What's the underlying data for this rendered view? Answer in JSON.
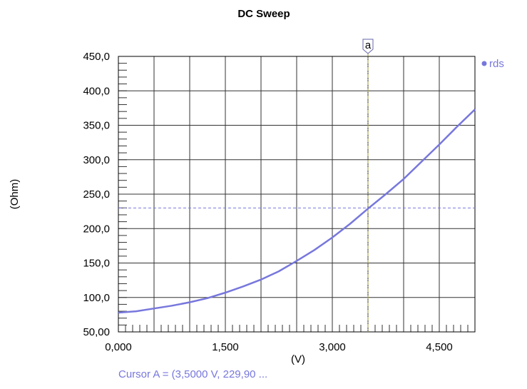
{
  "chart_data": {
    "type": "line",
    "title": "DC Sweep",
    "xlabel": "(V)",
    "ylabel": "(Ohm)",
    "xlim": [
      0,
      5
    ],
    "ylim": [
      50,
      450
    ],
    "x_ticks": [
      0,
      1.5,
      3,
      4.5
    ],
    "x_tick_labels": [
      "0,000",
      "1,500",
      "3,000",
      "4,500"
    ],
    "y_ticks": [
      50,
      100,
      150,
      200,
      250,
      300,
      350,
      400,
      450
    ],
    "y_tick_labels": [
      "50,00",
      "100,0",
      "150,0",
      "200,0",
      "250,0",
      "300,0",
      "350,0",
      "400,0",
      "450,0"
    ],
    "grid": true,
    "legend_position": "top-right",
    "series": [
      {
        "name": "rds",
        "color": "#7777dd",
        "x": [
          0,
          0.25,
          0.5,
          0.75,
          1.0,
          1.25,
          1.5,
          1.75,
          2.0,
          2.25,
          2.5,
          2.75,
          3.0,
          3.25,
          3.5,
          3.75,
          4.0,
          4.25,
          4.5,
          4.75,
          5.0
        ],
        "y": [
          78,
          80,
          84,
          88,
          93,
          99,
          107,
          116,
          126,
          138,
          153,
          169,
          187,
          207,
          229,
          250,
          272,
          297,
          322,
          348,
          373
        ]
      }
    ],
    "cursor": {
      "label": "a",
      "x": 3.5,
      "y": 229.9,
      "readout": "Cursor A = (3,5000 V, 229,90 ...",
      "vline_color": "#999933",
      "hline_color": "#7777dd"
    }
  }
}
